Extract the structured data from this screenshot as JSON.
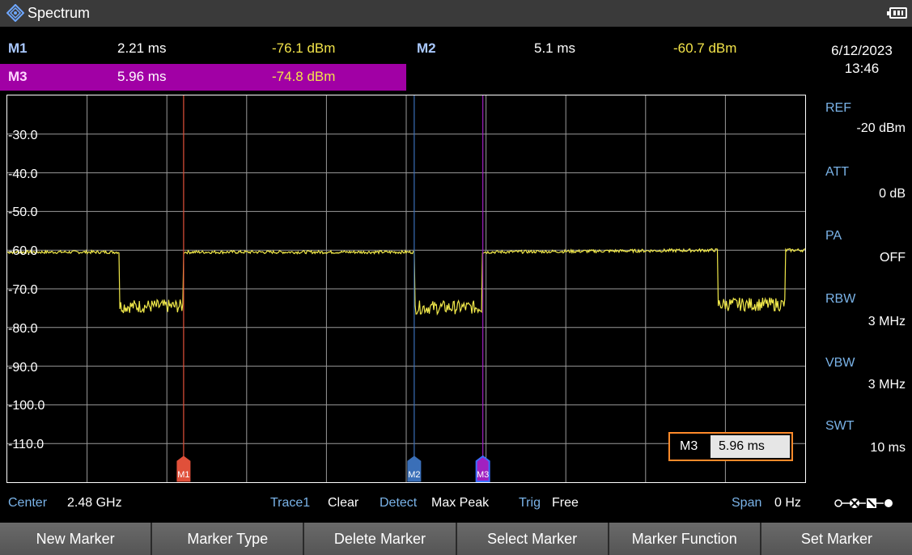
{
  "header": {
    "title": "Spectrum",
    "date": "6/12/2023",
    "time": "13:46"
  },
  "markers": {
    "m1": {
      "label": "M1",
      "x": "2.21 ms",
      "y": "-76.1 dBm"
    },
    "m2": {
      "label": "M2",
      "x": "5.1 ms",
      "y": "-60.7 dBm"
    },
    "m3": {
      "label": "M3",
      "x": "5.96 ms",
      "y": "-74.8 dBm"
    }
  },
  "settings": {
    "ref": {
      "label": "REF",
      "value": "-20 dBm"
    },
    "att": {
      "label": "ATT",
      "value": "0 dB"
    },
    "pa": {
      "label": "PA",
      "value": "OFF"
    },
    "rbw": {
      "label": "RBW",
      "value": "3 MHz"
    },
    "vbw": {
      "label": "VBW",
      "value": "3 MHz"
    },
    "swt": {
      "label": "SWT",
      "value": "10 ms"
    }
  },
  "yaxis": {
    "ticks": [
      "-30.0",
      "-40.0",
      "-50.0",
      "-60.0",
      "-70.0",
      "-80.0",
      "-90.0",
      "-100.0",
      "-110.0"
    ]
  },
  "readout": {
    "label": "M3",
    "value": "5.96 ms"
  },
  "status": {
    "center_label": "Center",
    "center_value": "2.48 GHz",
    "trace_label": "Trace1",
    "trace_value": "Clear",
    "detect_label": "Detect",
    "detect_value": "Max Peak",
    "trig_label": "Trig",
    "trig_value": "Free",
    "span_label": "Span",
    "span_value": "0 Hz"
  },
  "softkeys": [
    "New Marker",
    "Marker Type",
    "Delete Marker",
    "Select Marker",
    "Marker Function",
    "Set Marker"
  ],
  "chart_data": {
    "type": "line",
    "ylabel_unit": "dBm",
    "ylim": [
      -120,
      -20
    ],
    "xlim": [
      0,
      10
    ],
    "x_unit": "ms",
    "series": [
      {
        "color": "#f0e84a",
        "x": [
          0,
          1.4,
          1.4,
          2.2,
          2.2,
          5.1,
          5.1,
          5.95,
          5.95,
          8.9,
          8.9,
          9.75,
          9.75,
          10
        ],
        "values": [
          -60.5,
          -60.5,
          -74.5,
          -74.5,
          -60.5,
          -60.5,
          -74.8,
          -74.8,
          -60.5,
          -60.0,
          -74.0,
          -74.0,
          -60.0,
          -60.0
        ]
      }
    ],
    "markers": [
      {
        "label": "M1",
        "x": 2.21,
        "color": "#e0503a"
      },
      {
        "label": "M2",
        "x": 5.1,
        "color": "#3a6fb8"
      },
      {
        "label": "M3",
        "x": 5.96,
        "color": "#a020c0"
      }
    ]
  },
  "colors": {
    "trace": "#f0e84a",
    "m3_bar": "#a100a5",
    "readout_border": "#ff8a2a",
    "label_blue": "#7ab3e8"
  }
}
